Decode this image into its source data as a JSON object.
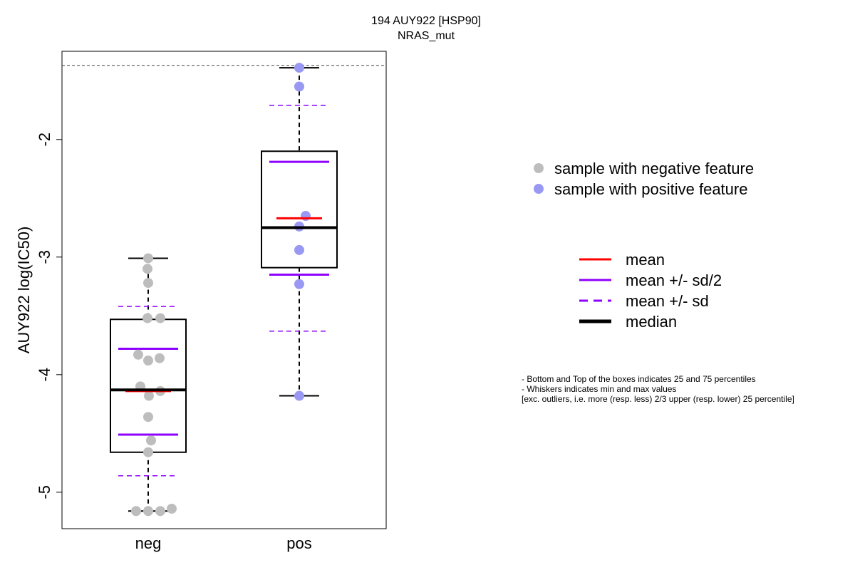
{
  "chart_data": {
    "type": "box",
    "title": "194 AUY922 [HSP90]",
    "subtitle": "NRAS_mut",
    "ylabel": "AUY922 log(IC50)",
    "xlabel": "",
    "ylim": [
      -5.31,
      -1.25
    ],
    "yticks": [
      -5,
      -4,
      -3,
      -2
    ],
    "ytick_labels": [
      "-5",
      "-4",
      "-3",
      "-2"
    ],
    "reference_line": -1.37,
    "grid": false,
    "categories": [
      "neg",
      "pos"
    ],
    "groups": [
      {
        "name": "neg",
        "color": "#bdbdbd",
        "q1": -4.66,
        "q3": -3.53,
        "median": -4.13,
        "mean": -4.14,
        "mean_minus_half_sd": -4.51,
        "mean_plus_half_sd": -3.78,
        "mean_minus_sd": -4.86,
        "mean_plus_sd": -3.42,
        "whisker_low": -5.16,
        "whisker_high": -3.01,
        "points": [
          {
            "j": 0.0,
            "y": -3.01
          },
          {
            "j": -0.01,
            "y": -3.1
          },
          {
            "j": 0.0,
            "y": -3.22
          },
          {
            "j": -0.01,
            "y": -3.52
          },
          {
            "j": 0.17,
            "y": -3.52
          },
          {
            "j": -0.14,
            "y": -3.83
          },
          {
            "j": 0.16,
            "y": -3.86
          },
          {
            "j": 0.0,
            "y": -3.88
          },
          {
            "j": -0.11,
            "y": -4.1
          },
          {
            "j": 0.17,
            "y": -4.14
          },
          {
            "j": 0.01,
            "y": -4.18
          },
          {
            "j": 0.0,
            "y": -4.36
          },
          {
            "j": 0.04,
            "y": -4.56
          },
          {
            "j": 0.0,
            "y": -4.66
          },
          {
            "j": -0.17,
            "y": -5.16
          },
          {
            "j": 0.0,
            "y": -5.16
          },
          {
            "j": 0.17,
            "y": -5.16
          },
          {
            "j": 0.33,
            "y": -5.14
          }
        ]
      },
      {
        "name": "pos",
        "color": "#9999f4",
        "q1": -3.09,
        "q3": -2.1,
        "median": -2.75,
        "mean": -2.67,
        "mean_minus_half_sd": -3.15,
        "mean_plus_half_sd": -2.19,
        "mean_minus_sd": -3.63,
        "mean_plus_sd": -1.71,
        "whisker_low": -4.18,
        "whisker_high": -1.39,
        "points": [
          {
            "j": 0.0,
            "y": -1.39
          },
          {
            "j": 0.0,
            "y": -1.55
          },
          {
            "j": 0.09,
            "y": -2.65
          },
          {
            "j": 0.0,
            "y": -2.74
          },
          {
            "j": 0.0,
            "y": -2.94
          },
          {
            "j": 0.0,
            "y": -3.23
          },
          {
            "j": 0.0,
            "y": -4.18
          }
        ]
      }
    ],
    "legend_points": [
      {
        "label": "sample with negative feature",
        "color": "#bdbdbd"
      },
      {
        "label": "sample with positive feature",
        "color": "#9999f4"
      }
    ],
    "legend_lines": [
      {
        "label": "mean",
        "color": "#ff0000",
        "style": "solid",
        "weight": "normal"
      },
      {
        "label": "mean +/- sd/2",
        "color": "#8f00ff",
        "style": "solid",
        "weight": "normal"
      },
      {
        "label": "mean +/- sd",
        "color": "#8f00ff",
        "style": "dashed",
        "weight": "normal"
      },
      {
        "label": "median",
        "color": "#000000",
        "style": "solid",
        "weight": "thick"
      }
    ]
  },
  "notes": {
    "line1": "- Bottom and Top of the boxes indicates 25 and 75 percentiles",
    "line2": "- Whiskers indicates min and max values",
    "line3": "[exc. outliers, i.e. more (resp. less) 2/3 upper (resp. lower) 25 percentile]"
  }
}
